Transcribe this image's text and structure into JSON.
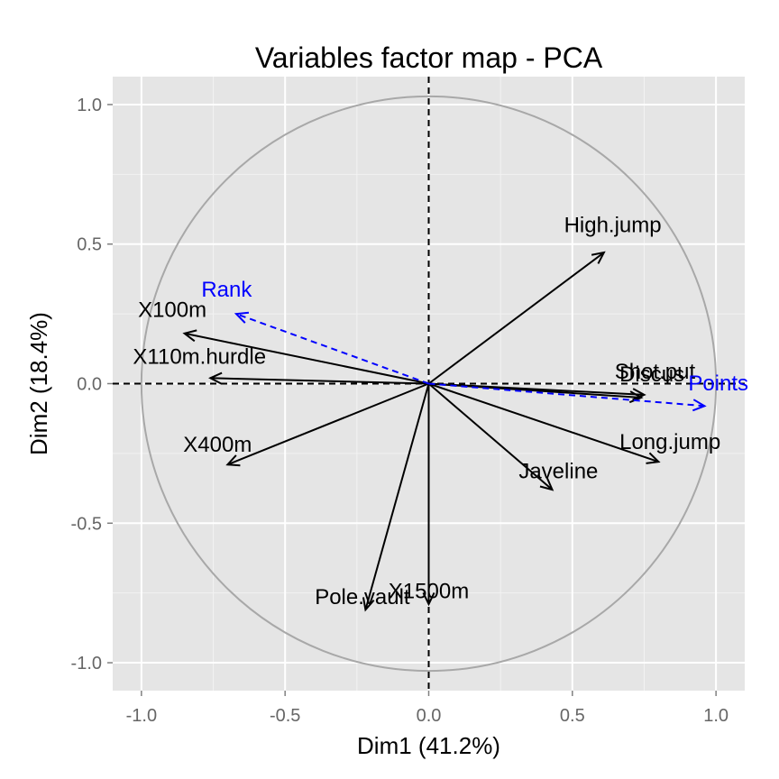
{
  "chart_data": {
    "type": "scatter",
    "title": "Variables factor map - PCA",
    "xlabel": "Dim1 (41.2%)",
    "ylabel": "Dim2 (18.4%)",
    "xlim": [
      -1.1,
      1.1
    ],
    "ylim": [
      -1.1,
      1.1
    ],
    "x_ticks": [
      -1.0,
      -0.5,
      0.0,
      0.5,
      1.0
    ],
    "y_ticks": [
      -1.0,
      -0.5,
      0.0,
      0.5,
      1.0
    ],
    "x_tick_labels": [
      "-1.0",
      "-0.5",
      "0.0",
      "0.5",
      "1.0"
    ],
    "y_tick_labels": [
      "-1.0",
      "-0.5",
      "0.0",
      "0.5",
      "1.0"
    ],
    "grid": true,
    "correlation_circle": {
      "radius": 1.0,
      "color": "#a8a8a8"
    },
    "active_color": "#000000",
    "supplementary_color": "#0000ff",
    "series": [
      {
        "group": "active",
        "arrows": [
          {
            "label": "X100m",
            "x": -0.85,
            "y": 0.18
          },
          {
            "label": "Long.jump",
            "x": 0.8,
            "y": -0.28
          },
          {
            "label": "Shot.put",
            "x": 0.75,
            "y": -0.04
          },
          {
            "label": "High.jump",
            "x": 0.61,
            "y": 0.47
          },
          {
            "label": "X400m",
            "x": -0.7,
            "y": -0.29
          },
          {
            "label": "X110m.hurdle",
            "x": -0.76,
            "y": 0.02
          },
          {
            "label": "Discus",
            "x": 0.74,
            "y": -0.05
          },
          {
            "label": "Pole.vault",
            "x": -0.22,
            "y": -0.81
          },
          {
            "label": "Javeline",
            "x": 0.43,
            "y": -0.38
          },
          {
            "label": "X1500m",
            "x": 0.0,
            "y": -0.79
          }
        ]
      },
      {
        "group": "supplementary",
        "arrows": [
          {
            "label": "Rank",
            "x": -0.67,
            "y": 0.25
          },
          {
            "label": "Points",
            "x": 0.96,
            "y": -0.08
          }
        ]
      }
    ]
  }
}
